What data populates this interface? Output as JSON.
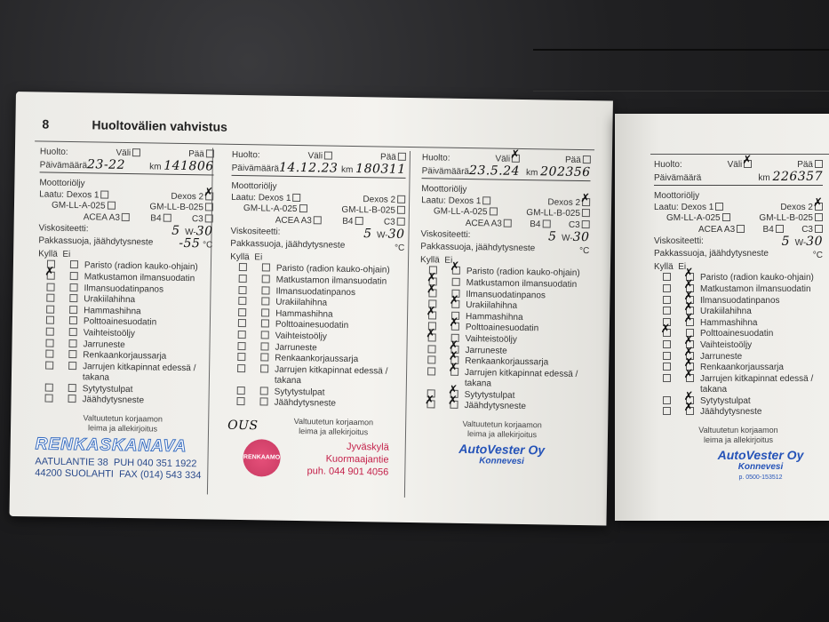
{
  "page_number": "8",
  "page_title": "Huoltovälien vahvistus",
  "labels": {
    "huolto": "Huolto:",
    "vali": "Väli",
    "paa": "Pää",
    "paivamaara": "Päivämäärä",
    "km": "km",
    "moottorioljy": "Moottoriöljy",
    "laatu": "Laatu:",
    "dexos1": "Dexos 1",
    "dexos2": "Dexos 2",
    "gma": "GM-LL-A-025",
    "gmb": "GM-LL-B-025",
    "acea": "ACEA A3",
    "b4": "B4",
    "c3": "C3",
    "viskositeetti": "Viskositeetti:",
    "w": "W-",
    "pakkassuoja": "Pakkassuoja, jäähdytysneste",
    "celsius": "°C",
    "kylla": "Kyllä",
    "ei": "Ei",
    "stamp_note_1": "Valtuutetun korjaamon",
    "stamp_note_2": "leima ja allekirjoitus"
  },
  "items": [
    "Paristo (radion kauko-ohjain)",
    "Matkustamon ilmansuodatin",
    "Ilmansuodatinpanos",
    "Urakiilahihna",
    "Hammashihna",
    "Polttoainesuodatin",
    "Vaihteistoöljy",
    "Jarruneste",
    "Renkaankorjaussarja",
    "Jarrujen kitkapinnat edessä / takana",
    "Sytytystulpat",
    "Jäähdytysneste"
  ],
  "entries": [
    {
      "vali": false,
      "paa": false,
      "date": "23-22",
      "km": "141806",
      "dexos2": true,
      "visc_a": "5",
      "visc_b": "30",
      "antifreeze": "-55",
      "kylla": [
        false,
        true,
        false,
        false,
        false,
        false,
        false,
        false,
        false,
        false,
        false,
        false
      ],
      "ei": [
        false,
        false,
        false,
        false,
        false,
        false,
        false,
        false,
        false,
        false,
        false,
        false
      ],
      "stamp": {
        "type": "renkaskanava",
        "name": "RENKASKANAVA",
        "address_1": "AATULANTIE 38",
        "address_2": "44200 SUOLAHTI",
        "phone": "PUH 040 351 1922",
        "fax": "FAX (014) 543 334"
      }
    },
    {
      "vali": false,
      "paa": false,
      "date": "14.12.23",
      "km": "180311",
      "dexos2": false,
      "visc_a": "5",
      "visc_b": "30",
      "antifreeze": "",
      "kylla": [
        false,
        false,
        false,
        false,
        false,
        false,
        false,
        false,
        false,
        false,
        false,
        false
      ],
      "ei": [
        false,
        false,
        false,
        false,
        false,
        false,
        false,
        false,
        false,
        false,
        false,
        false
      ],
      "signature": "OUS",
      "stamp": {
        "type": "red",
        "seal": "RENKAAMO",
        "city": "Jyväskylä",
        "street": "Kuormaajantie",
        "phone": "puh. 044 901 4056"
      }
    },
    {
      "vali": true,
      "paa": false,
      "date": "23.5.24",
      "km": "202356",
      "dexos2": true,
      "visc_a": "5",
      "visc_b": "30",
      "antifreeze": "",
      "kylla": [
        false,
        true,
        true,
        false,
        true,
        false,
        true,
        false,
        false,
        false,
        false,
        true
      ],
      "ei": [
        true,
        false,
        false,
        true,
        false,
        true,
        false,
        true,
        true,
        true,
        true,
        true
      ],
      "stamp": {
        "type": "blue",
        "name": "AutoVester Oy",
        "city": "Konnevesi"
      }
    },
    {
      "vali": true,
      "paa": false,
      "date": "",
      "km": "226357",
      "dexos2": true,
      "visc_a": "5",
      "visc_b": "30",
      "antifreeze": "",
      "kylla": [
        false,
        false,
        false,
        false,
        false,
        true,
        false,
        false,
        false,
        false,
        false,
        false
      ],
      "ei": [
        true,
        true,
        true,
        true,
        true,
        false,
        true,
        true,
        true,
        true,
        true,
        true
      ],
      "stamp": {
        "type": "blue",
        "name": "AutoVester Oy",
        "city": "Konnevesi",
        "phone": "p. 0500-153512"
      }
    }
  ]
}
